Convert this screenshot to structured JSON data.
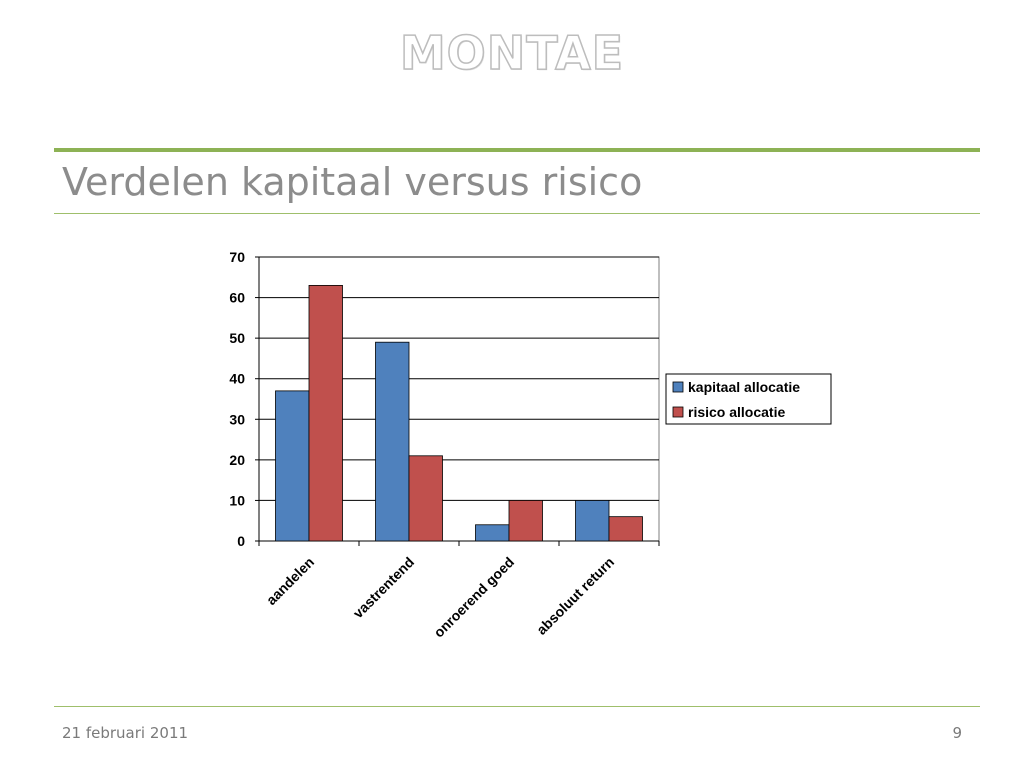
{
  "header": {
    "logo": "MONTAE",
    "title": "Verdelen kapitaal versus risico"
  },
  "footer": {
    "date": "21 februari 2011",
    "page_number": "9"
  },
  "chart_data": {
    "type": "bar",
    "categories": [
      "aandelen",
      "vastrentend",
      "onroerend goed",
      "absoluut return"
    ],
    "series": [
      {
        "name": "kapitaal allocatie",
        "values": [
          37,
          49,
          4,
          10
        ],
        "color": "#4f81bd"
      },
      {
        "name": "risico allocatie",
        "values": [
          63,
          21,
          10,
          6
        ],
        "color": "#c0504d"
      }
    ],
    "ylim": [
      0,
      70
    ],
    "yticks": [
      0,
      10,
      20,
      30,
      40,
      50,
      60,
      70
    ],
    "grid": true,
    "legend": "right",
    "xlabel": "",
    "ylabel": ""
  }
}
